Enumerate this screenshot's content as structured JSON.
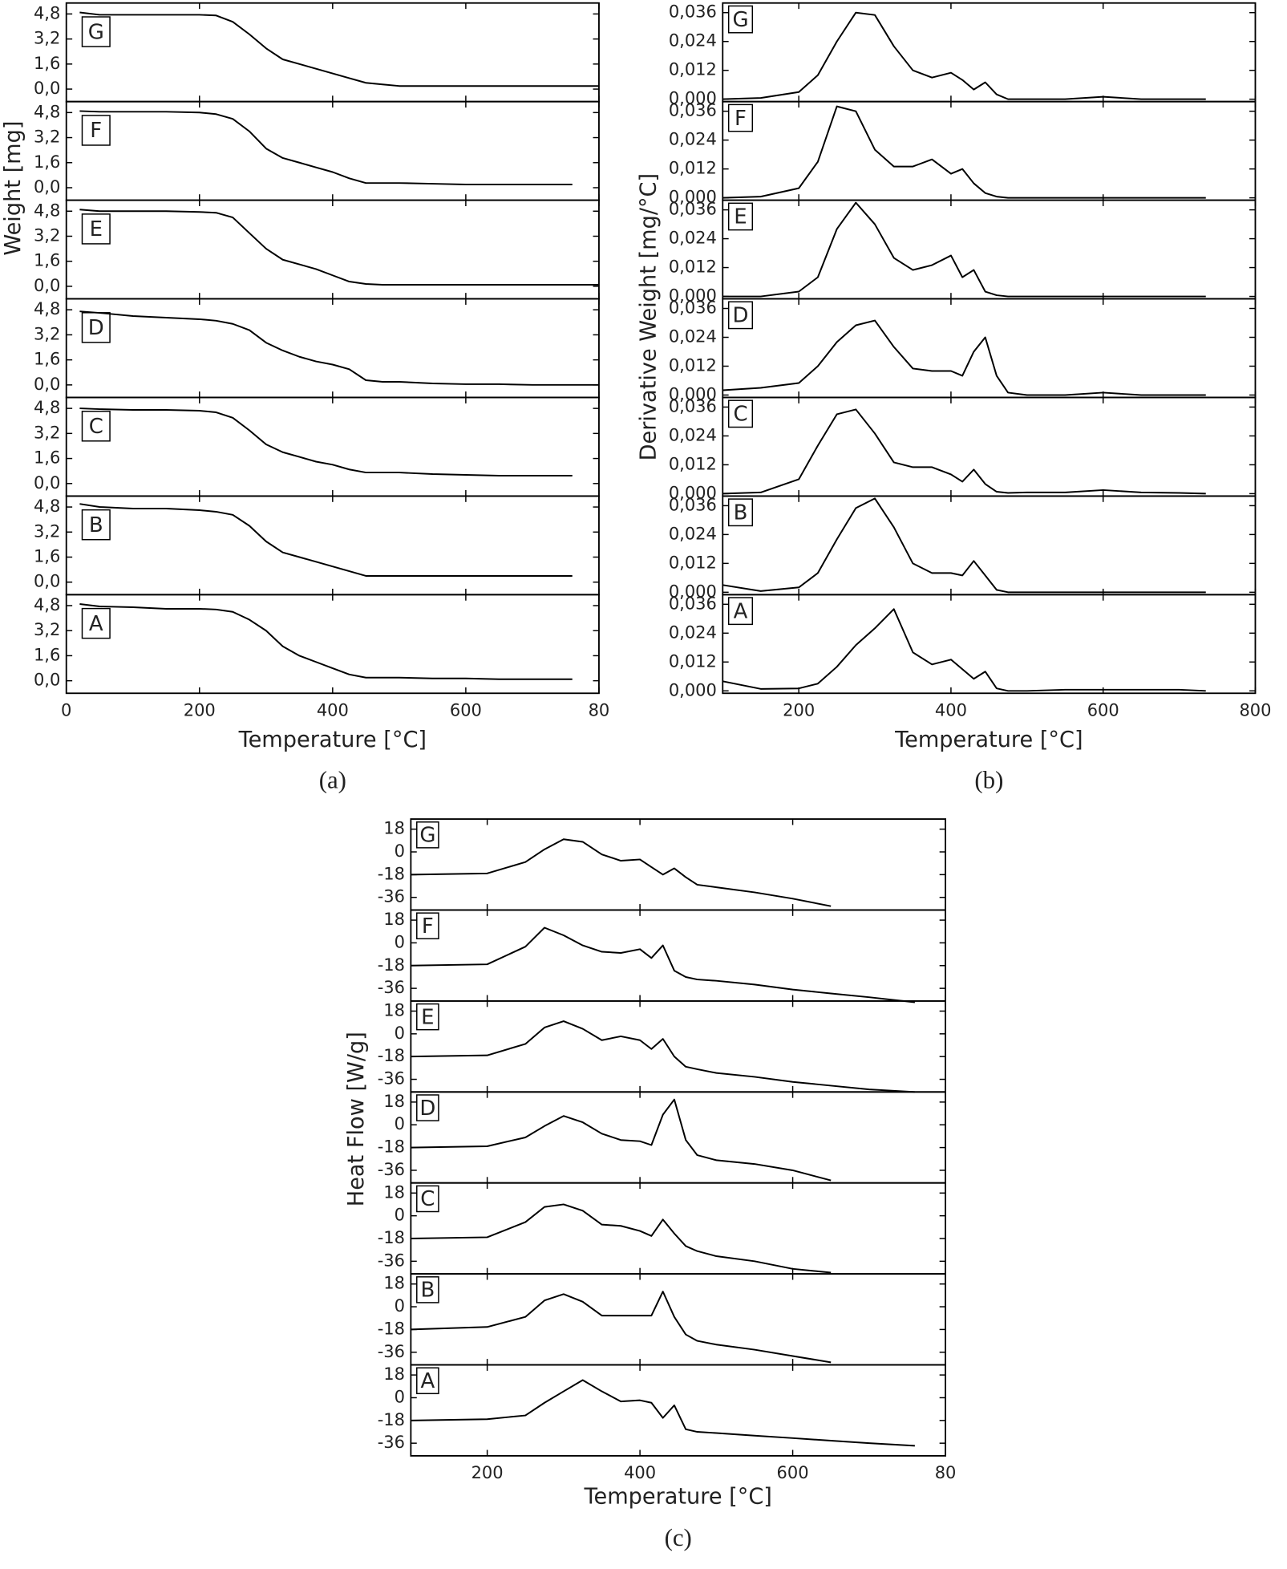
{
  "chart_data": [
    {
      "type": "line",
      "panel_label": "(a)",
      "xlabel": "Temperature [°C]",
      "ylabel": "Weight [mg]",
      "color": "#000000",
      "xlim": [
        0,
        800
      ],
      "xticks": [
        0,
        200,
        400,
        600,
        {
          "value": 800,
          "label": "80"
        }
      ],
      "ylim": [
        -0.8,
        5.5
      ],
      "yticks": [
        {
          "value": 0,
          "label": "0,0"
        },
        {
          "value": 1.6,
          "label": "1,6"
        },
        {
          "value": 3.2,
          "label": "3,2"
        },
        {
          "value": 4.8,
          "label": "4,8"
        }
      ],
      "x": [
        20,
        50,
        100,
        150,
        200,
        225,
        250,
        275,
        300,
        325,
        350,
        375,
        400,
        425,
        450,
        475,
        500,
        550,
        600,
        650,
        700,
        760,
        800
      ],
      "subplots": [
        {
          "label": "G",
          "values": [
            4.9,
            4.75,
            4.75,
            4.75,
            4.75,
            4.7,
            4.3,
            3.5,
            2.6,
            1.9,
            1.6,
            1.3,
            1.0,
            0.7,
            0.4,
            0.3,
            0.2,
            0.2,
            0.2,
            0.2,
            0.2,
            0.2,
            0.2
          ]
        },
        {
          "label": "F",
          "values": [
            4.9,
            4.85,
            4.85,
            4.85,
            4.8,
            4.7,
            4.4,
            3.6,
            2.5,
            1.9,
            1.6,
            1.3,
            1.0,
            0.6,
            0.3,
            0.3,
            0.3,
            0.25,
            0.2,
            0.2,
            0.2,
            0.2,
            null
          ]
        },
        {
          "label": "E",
          "values": [
            4.9,
            4.8,
            4.8,
            4.8,
            4.75,
            4.7,
            4.4,
            3.4,
            2.4,
            1.7,
            1.4,
            1.1,
            0.7,
            0.3,
            0.15,
            0.1,
            0.1,
            0.1,
            0.1,
            0.1,
            0.1,
            0.1,
            0.1
          ]
        },
        {
          "label": "D",
          "values": [
            4.7,
            4.6,
            4.4,
            4.3,
            4.2,
            4.1,
            3.9,
            3.5,
            2.7,
            2.2,
            1.8,
            1.5,
            1.3,
            1.0,
            0.3,
            0.2,
            0.2,
            0.1,
            0.05,
            0.05,
            0.0,
            0.0,
            0.0
          ]
        },
        {
          "label": "C",
          "values": [
            4.8,
            4.75,
            4.7,
            4.7,
            4.65,
            4.55,
            4.2,
            3.4,
            2.5,
            2.0,
            1.7,
            1.4,
            1.2,
            0.9,
            0.7,
            0.7,
            0.7,
            0.6,
            0.55,
            0.5,
            0.5,
            0.5,
            null
          ]
        },
        {
          "label": "B",
          "values": [
            5.0,
            4.8,
            4.7,
            4.7,
            4.6,
            4.5,
            4.3,
            3.6,
            2.6,
            1.9,
            1.6,
            1.3,
            1.0,
            0.7,
            0.4,
            0.4,
            0.4,
            0.4,
            0.4,
            0.4,
            0.4,
            0.4,
            null
          ]
        },
        {
          "label": "A",
          "values": [
            4.9,
            4.75,
            4.7,
            4.6,
            4.6,
            4.55,
            4.4,
            3.9,
            3.2,
            2.2,
            1.6,
            1.2,
            0.8,
            0.4,
            0.2,
            0.2,
            0.2,
            0.15,
            0.15,
            0.1,
            0.1,
            0.1,
            null
          ]
        }
      ]
    },
    {
      "type": "line",
      "panel_label": "(b)",
      "xlabel": "Temperature [°C]",
      "ylabel": "Derivative Weight [mg/°C]",
      "color": "#000000",
      "xlim": [
        100,
        800
      ],
      "xticks": [
        200,
        400,
        600,
        800
      ],
      "ylim": [
        -0.001,
        0.04
      ],
      "yticks": [
        {
          "value": 0,
          "label": "0,000"
        },
        {
          "value": 0.012,
          "label": "0,012"
        },
        {
          "value": 0.024,
          "label": "0,024"
        },
        {
          "value": 0.036,
          "label": "0,036"
        }
      ],
      "x": [
        100,
        150,
        200,
        225,
        250,
        275,
        300,
        325,
        350,
        375,
        400,
        415,
        430,
        445,
        460,
        475,
        500,
        550,
        600,
        650,
        700,
        735
      ],
      "subplots": [
        {
          "label": "G",
          "values": [
            0.0,
            0.0005,
            0.003,
            0.01,
            0.024,
            0.036,
            0.035,
            0.022,
            0.012,
            0.009,
            0.011,
            0.008,
            0.004,
            0.007,
            0.002,
            0.0,
            0.0,
            0.0,
            0.001,
            0.0,
            0.0,
            0.0
          ]
        },
        {
          "label": "F",
          "values": [
            0.0,
            0.0005,
            0.004,
            0.015,
            0.038,
            0.036,
            0.02,
            0.013,
            0.013,
            0.016,
            0.01,
            0.012,
            0.006,
            0.002,
            0.0005,
            0.0,
            0.0,
            0.0,
            0.0,
            0.0,
            0.0,
            0.0
          ]
        },
        {
          "label": "E",
          "values": [
            0.0,
            0.0,
            0.002,
            0.008,
            0.028,
            0.039,
            0.03,
            0.016,
            0.011,
            0.013,
            0.017,
            0.008,
            0.011,
            0.002,
            0.0005,
            0.0,
            0.0,
            0.0,
            0.0,
            0.0,
            0.0,
            0.0
          ]
        },
        {
          "label": "D",
          "values": [
            0.002,
            0.003,
            0.005,
            0.012,
            0.022,
            0.029,
            0.031,
            0.02,
            0.011,
            0.01,
            0.01,
            0.008,
            0.018,
            0.024,
            0.008,
            0.001,
            0.0,
            0.0,
            0.001,
            0.0,
            0.0,
            0.0
          ]
        },
        {
          "label": "C",
          "values": [
            0.0,
            0.0005,
            0.006,
            0.02,
            0.033,
            0.035,
            0.025,
            0.013,
            0.011,
            0.011,
            0.008,
            0.005,
            0.01,
            0.004,
            0.0008,
            0.0003,
            0.0005,
            0.0005,
            0.0015,
            0.0005,
            0.0003,
            0.0
          ]
        },
        {
          "label": "B",
          "values": [
            0.003,
            0.0005,
            0.002,
            0.008,
            0.022,
            0.035,
            0.039,
            0.027,
            0.012,
            0.008,
            0.008,
            0.007,
            0.013,
            0.007,
            0.001,
            0.0,
            0.0,
            0.0,
            0.0,
            0.0,
            0.0,
            0.0
          ]
        },
        {
          "label": "A",
          "values": [
            0.004,
            0.0008,
            0.001,
            0.003,
            0.01,
            0.019,
            0.026,
            0.034,
            0.016,
            0.011,
            0.013,
            0.009,
            0.005,
            0.008,
            0.001,
            0.0,
            0.0,
            0.0005,
            0.0005,
            0.0005,
            0.0005,
            0.0
          ]
        }
      ]
    },
    {
      "type": "line",
      "panel_label": "(c)",
      "xlabel": "Temperature [°C]",
      "ylabel": "Heat Flow [W/g]",
      "color": "#000000",
      "xlim": [
        100,
        800
      ],
      "xticks": [
        200,
        400,
        600,
        {
          "value": 800,
          "label": "80"
        }
      ],
      "ylim": [
        -46,
        26
      ],
      "yticks": [
        -36,
        -18,
        0,
        18
      ],
      "x": [
        100,
        200,
        250,
        275,
        300,
        325,
        350,
        375,
        400,
        415,
        430,
        445,
        460,
        475,
        500,
        550,
        600,
        650,
        700,
        760
      ],
      "subplots": [
        {
          "label": "G",
          "values": [
            -18,
            -17,
            -8,
            2,
            10,
            8,
            -2,
            -7,
            -6,
            -12,
            -18,
            -13,
            -20,
            -26,
            -28,
            -32,
            -37,
            -43,
            null,
            null
          ]
        },
        {
          "label": "F",
          "values": [
            -18,
            -17,
            -3,
            12,
            6,
            -2,
            -7,
            -8,
            -5,
            -12,
            -2,
            -22,
            -27,
            -29,
            -30,
            -33,
            -37,
            -40,
            -43,
            -47
          ]
        },
        {
          "label": "E",
          "values": [
            -18,
            -17,
            -8,
            5,
            10,
            4,
            -5,
            -2,
            -5,
            -12,
            -4,
            -18,
            -26,
            -28,
            -31,
            -34,
            -38,
            -41,
            -44,
            -46
          ]
        },
        {
          "label": "D",
          "values": [
            -18,
            -17,
            -10,
            -1,
            7,
            2,
            -7,
            -12,
            -13,
            -16,
            8,
            20,
            -12,
            -24,
            -28,
            -31,
            -36,
            -44,
            null,
            null
          ]
        },
        {
          "label": "C",
          "values": [
            -18,
            -17,
            -5,
            7,
            9,
            4,
            -7,
            -8,
            -12,
            -16,
            -3,
            -14,
            -24,
            -28,
            -32,
            -36,
            -42,
            -45,
            null,
            null
          ]
        },
        {
          "label": "B",
          "values": [
            -18,
            -16,
            -8,
            5,
            10,
            4,
            -7,
            -7,
            -7,
            -7,
            12,
            -8,
            -22,
            -27,
            -30,
            -34,
            -39,
            -44,
            null,
            null
          ]
        },
        {
          "label": "A",
          "values": [
            -18,
            -17,
            -14,
            -4,
            5,
            14,
            5,
            -3,
            -2,
            -4,
            -16,
            -6,
            -25,
            -27,
            -28,
            -30,
            -32,
            -34,
            -36,
            -38
          ]
        }
      ]
    }
  ]
}
